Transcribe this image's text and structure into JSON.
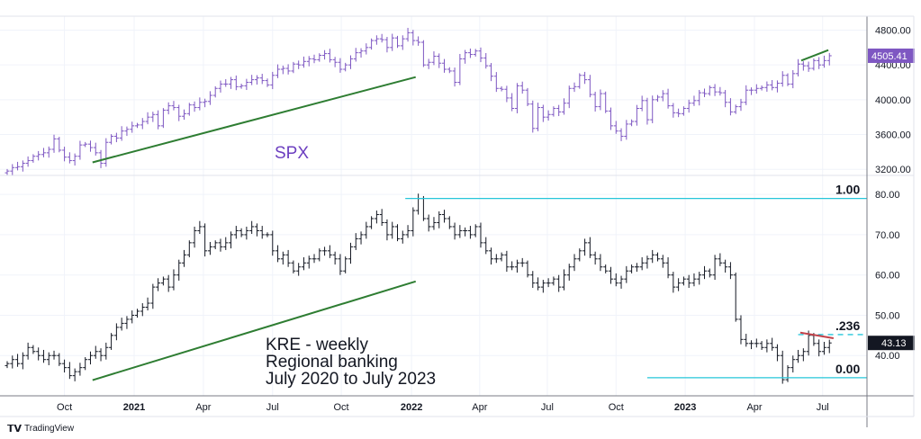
{
  "chart_data": [
    {
      "type": "ohlc-bar",
      "name": "SPX",
      "label": "SPX",
      "color": "#7e57c2",
      "last_value": "4505.41",
      "y_ticks": [
        "3200.00",
        "3600.00",
        "4000.00",
        "4400.00",
        "4800.00"
      ],
      "ylim": [
        3130,
        4960
      ],
      "range": 40,
      "closes": [
        3180,
        3220,
        3230,
        3270,
        3300,
        3350,
        3370,
        3390,
        3430,
        3550,
        3420,
        3340,
        3300,
        3350,
        3480,
        3490,
        3450,
        3390,
        3270,
        3510,
        3580,
        3560,
        3640,
        3660,
        3700,
        3710,
        3750,
        3800,
        3830,
        3700,
        3880,
        3930,
        3910,
        3810,
        3840,
        3940,
        3910,
        3970,
        3980,
        4050,
        4130,
        4180,
        4180,
        4230,
        4150,
        4160,
        4200,
        4230,
        4250,
        4220,
        4170,
        4280,
        4350,
        4360,
        4330,
        4410,
        4400,
        4440,
        4470,
        4460,
        4510,
        4530,
        4460,
        4430,
        4350,
        4400,
        4470,
        4540,
        4560,
        4600,
        4680,
        4700,
        4690,
        4600,
        4710,
        4620,
        4700,
        4770,
        4680,
        4660,
        4400,
        4430,
        4500,
        4420,
        4350,
        4330,
        4200,
        4470,
        4540,
        4520,
        4560,
        4480,
        4390,
        4270,
        4130,
        4120,
        4020,
        3900,
        4160,
        4110,
        3950,
        3670,
        3910,
        3800,
        3830,
        3900,
        3860,
        3960,
        4130,
        4150,
        4280,
        4230,
        4060,
        3920,
        4070,
        3870,
        3700,
        3640,
        3580,
        3720,
        3750,
        3900,
        3990,
        3770,
        4000,
        4030,
        4070,
        3930,
        3850,
        3840,
        3900,
        3960,
        3990,
        4080,
        4070,
        4140,
        4090,
        4080,
        3970,
        3860,
        3920,
        3970,
        4110,
        4110,
        4130,
        4140,
        4170,
        4140,
        4190,
        4280,
        4180,
        4300,
        4410,
        4390,
        4360,
        4450,
        4400,
        4450,
        4505.41
      ],
      "annotations": [
        {
          "kind": "trendline",
          "color": "#2e7d32",
          "from": [
            16.4,
            3280
          ],
          "to": [
            78.5,
            4260
          ]
        },
        {
          "kind": "trendline",
          "color": "#2e7d32",
          "from": [
            152.6,
            4450
          ],
          "to": [
            157.8,
            4570
          ]
        }
      ]
    },
    {
      "type": "ohlc-bar",
      "name": "KRE",
      "label_lines": [
        "KRE - weekly",
        "Regional banking",
        "July 2020 to July 2023"
      ],
      "color": "#131722",
      "last_value": "43.13",
      "y_ticks": [
        "40.00",
        "50.00",
        "60.00",
        "70.00",
        "80.00"
      ],
      "ylim": [
        30,
        84.5
      ],
      "range": 1,
      "closes": [
        38,
        39,
        38,
        40,
        42,
        41,
        40,
        39,
        40,
        40,
        38,
        37,
        35,
        36,
        37,
        39,
        40,
        41,
        40,
        42,
        45,
        47,
        48,
        49,
        50,
        51,
        52,
        53,
        57,
        58,
        59,
        57,
        60,
        63,
        65,
        68,
        71,
        72,
        66,
        67,
        68,
        67,
        68,
        70,
        71,
        70,
        71,
        72,
        71,
        70,
        70,
        66,
        64,
        65,
        63,
        61,
        62,
        63,
        64,
        64,
        66,
        66,
        65,
        64,
        61,
        64,
        67,
        69,
        70,
        72,
        74,
        75,
        73,
        70,
        72,
        69,
        70,
        71,
        76,
        79,
        74,
        72,
        73,
        75,
        74,
        72,
        70,
        71,
        71,
        70,
        72,
        68,
        66,
        64,
        64,
        65,
        62,
        62,
        63,
        63,
        60,
        58,
        57,
        58,
        58,
        59,
        57,
        60,
        62,
        64,
        66,
        68,
        65,
        64,
        62,
        61,
        59,
        58,
        59,
        61,
        62,
        62,
        63,
        64,
        65,
        64,
        63,
        60,
        57,
        58,
        59,
        58,
        59,
        60,
        61,
        60,
        64,
        63,
        62,
        60,
        49,
        44,
        43,
        43,
        43,
        42,
        43,
        42,
        40,
        34,
        37,
        39,
        40,
        41,
        45,
        43,
        41,
        42,
        43.13
      ],
      "annotations": [
        {
          "kind": "trendline",
          "color": "#2e7d32",
          "from": [
            16.4,
            33.9
          ],
          "to": [
            78.5,
            58.4
          ]
        },
        {
          "kind": "fib-level",
          "label": "1.00",
          "value": 79.0,
          "from_week": 76.5,
          "color": "#26c6da",
          "dashed": false
        },
        {
          "kind": "fib-level",
          "label": ".236",
          "value": 45.2,
          "from_week": 152,
          "color": "#26c6da",
          "dashed": true
        },
        {
          "kind": "fib-level",
          "label": "0.00",
          "value": 34.5,
          "from_week": 123,
          "color": "#26c6da",
          "dashed": false
        },
        {
          "kind": "trendline",
          "color": "#c2424a",
          "from": [
            152.4,
            45.7
          ],
          "to": [
            158.8,
            44.3
          ]
        }
      ]
    }
  ],
  "time_axis": {
    "ticks": [
      {
        "label": "Oct",
        "week": 11,
        "bold": false
      },
      {
        "label": "2021",
        "week": 24.4,
        "bold": true
      },
      {
        "label": "Apr",
        "week": 37.7,
        "bold": false
      },
      {
        "label": "Jul",
        "week": 51,
        "bold": false
      },
      {
        "label": "Oct",
        "week": 64.2,
        "bold": false
      },
      {
        "label": "2022",
        "week": 77.7,
        "bold": true
      },
      {
        "label": "Apr",
        "week": 90.8,
        "bold": false
      },
      {
        "label": "Jul",
        "week": 103.8,
        "bold": false
      },
      {
        "label": "Oct",
        "week": 117,
        "bold": false
      },
      {
        "label": "2023",
        "week": 130.3,
        "bold": true
      },
      {
        "label": "Apr",
        "week": 143.6,
        "bold": false
      },
      {
        "label": "Jul",
        "week": 156.7,
        "bold": false
      }
    ]
  },
  "branding": {
    "name": "TradingView",
    "logo": "TV"
  }
}
